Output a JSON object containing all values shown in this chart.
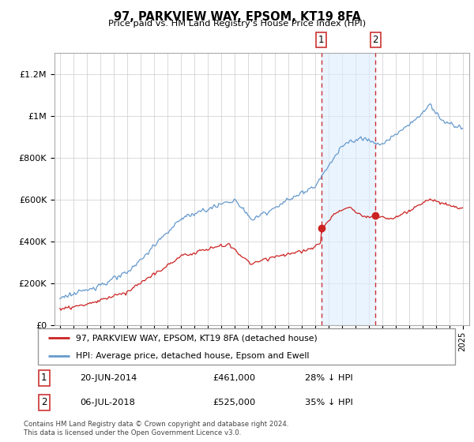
{
  "title": "97, PARKVIEW WAY, EPSOM, KT19 8FA",
  "subtitle": "Price paid vs. HM Land Registry's House Price Index (HPI)",
  "ytick_vals": [
    0,
    200000,
    400000,
    600000,
    800000,
    1000000,
    1200000
  ],
  "ylim": [
    0,
    1300000
  ],
  "sale1_label": "20-JUN-2014",
  "sale1_price": 461000,
  "sale1_pct": "28% ↓ HPI",
  "sale2_label": "06-JUL-2018",
  "sale2_price": 525000,
  "sale2_pct": "35% ↓ HPI",
  "sale1_x": 2014.47,
  "sale2_x": 2018.51,
  "line_color_hpi": "#6699cc",
  "line_color_price": "#cc2222",
  "shade_color": "#ddeeff",
  "dashed_color": "#cc3333",
  "footer": "Contains HM Land Registry data © Crown copyright and database right 2024.\nThis data is licensed under the Open Government Licence v3.0.",
  "legend1": "97, PARKVIEW WAY, EPSOM, KT19 8FA (detached house)",
  "legend2": "HPI: Average price, detached house, Epsom and Ewell",
  "xlim_left": 1994.6,
  "xlim_right": 2025.5
}
